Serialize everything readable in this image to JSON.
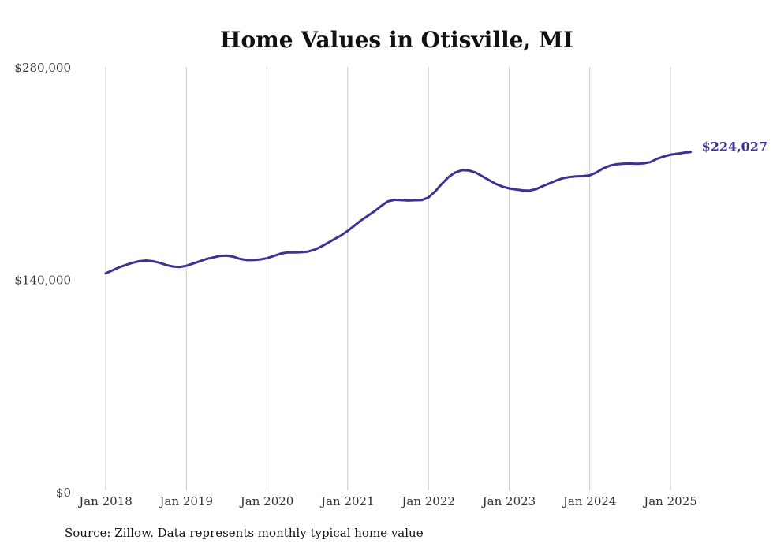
{
  "chart_data": {
    "type": "line",
    "title": "Home Values in Otisville, MI",
    "xlabel": "",
    "ylabel": "",
    "ylim": [
      0,
      280000
    ],
    "y_ticks": [
      0,
      140000,
      280000
    ],
    "y_tick_labels": [
      "$0",
      "$140,000",
      "$280,000"
    ],
    "x_range": [
      "2018-01",
      "2025-04"
    ],
    "x_ticks": [
      "2018-01",
      "2019-01",
      "2020-01",
      "2021-01",
      "2022-01",
      "2023-01",
      "2024-01",
      "2025-01"
    ],
    "x_tick_labels": [
      "Jan 2018",
      "Jan 2019",
      "Jan 2020",
      "Jan 2021",
      "Jan 2022",
      "Jan 2023",
      "Jan 2024",
      "Jan 2025"
    ],
    "grid": "vertical",
    "line_color": "#3b3494",
    "end_label": "$224,027",
    "series": [
      {
        "x": [
          "2018-01",
          "2018-02",
          "2018-03",
          "2018-04",
          "2018-05",
          "2018-06",
          "2018-07",
          "2018-08",
          "2018-09",
          "2018-10",
          "2018-11",
          "2018-12",
          "2019-01",
          "2019-02",
          "2019-03",
          "2019-04",
          "2019-05",
          "2019-06",
          "2019-07",
          "2019-08",
          "2019-09",
          "2019-10",
          "2019-11",
          "2019-12",
          "2020-01",
          "2020-02",
          "2020-03",
          "2020-04",
          "2020-05",
          "2020-06",
          "2020-07",
          "2020-08",
          "2020-09",
          "2020-10",
          "2020-11",
          "2020-12",
          "2021-01",
          "2021-02",
          "2021-03",
          "2021-04",
          "2021-05",
          "2021-06",
          "2021-07",
          "2021-08",
          "2021-09",
          "2021-10",
          "2021-11",
          "2021-12",
          "2022-01",
          "2022-02",
          "2022-03",
          "2022-04",
          "2022-05",
          "2022-06",
          "2022-07",
          "2022-08",
          "2022-09",
          "2022-10",
          "2022-11",
          "2022-12",
          "2023-01",
          "2023-02",
          "2023-03",
          "2023-04",
          "2023-05",
          "2023-06",
          "2023-07",
          "2023-08",
          "2023-09",
          "2023-10",
          "2023-11",
          "2023-12",
          "2024-01",
          "2024-02",
          "2024-03",
          "2024-04",
          "2024-05",
          "2024-06",
          "2024-07",
          "2024-08",
          "2024-09",
          "2024-10",
          "2024-11",
          "2024-12",
          "2025-01",
          "2025-02",
          "2025-03",
          "2025-04"
        ],
        "values": [
          144000,
          146000,
          148000,
          149500,
          151000,
          152000,
          152500,
          152000,
          151000,
          149500,
          148500,
          148200,
          149000,
          150500,
          152000,
          153500,
          154500,
          155500,
          155700,
          155000,
          153500,
          152800,
          152800,
          153200,
          154000,
          155500,
          157000,
          157800,
          157800,
          157900,
          158300,
          159500,
          161500,
          164000,
          166500,
          169000,
          172000,
          175500,
          179000,
          182000,
          185000,
          188500,
          191500,
          192500,
          192300,
          192000,
          192200,
          192300,
          194000,
          198000,
          203000,
          207500,
          210500,
          212000,
          211800,
          210500,
          208000,
          205500,
          203000,
          201200,
          200000,
          199300,
          198700,
          198500,
          199500,
          201500,
          203300,
          205200,
          206700,
          207500,
          207900,
          208100,
          208600,
          210500,
          213200,
          215000,
          215900,
          216300,
          216400,
          216200,
          216500,
          217300,
          219500,
          221000,
          222200,
          222900,
          223500,
          224027
        ]
      }
    ]
  },
  "source": "Source: Zillow. Data represents monthly typical home value"
}
